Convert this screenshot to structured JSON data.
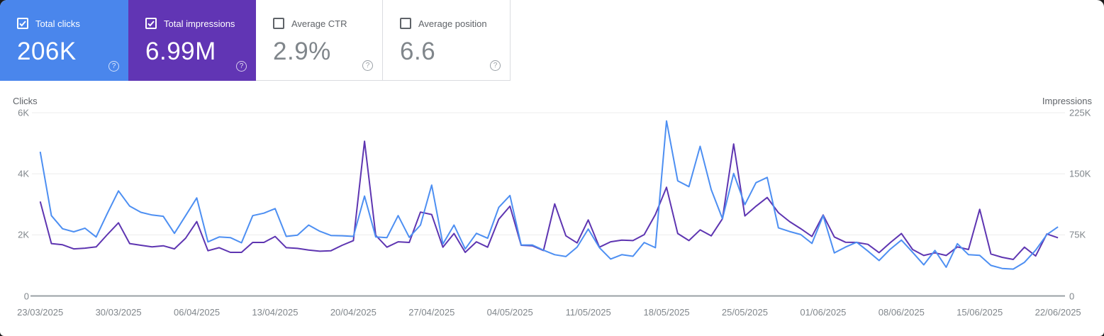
{
  "icons": {
    "help_glyph": "?",
    "checkbox_glyph": "check-mark"
  },
  "cards": [
    {
      "label": "Total clicks",
      "value": "206K",
      "checked": true,
      "color": "#4a86ec"
    },
    {
      "label": "Total impressions",
      "value": "6.99M",
      "checked": true,
      "color": "#6135b4"
    },
    {
      "label": "Average CTR",
      "value": "2.9%",
      "checked": false,
      "color": "#ffffff"
    },
    {
      "label": "Average position",
      "value": "6.6",
      "checked": false,
      "color": "#ffffff"
    }
  ],
  "chart_data": {
    "type": "line",
    "grid": true,
    "legend_position": "none",
    "left_axis": {
      "title": "Clicks",
      "ticks": [
        "6K",
        "4K",
        "2K",
        "0"
      ],
      "tick_values": [
        6000,
        4000,
        2000,
        0
      ],
      "max": 6000
    },
    "right_axis": {
      "title": "Impressions",
      "ticks": [
        "225K",
        "150K",
        "75K",
        "0"
      ],
      "tick_values": [
        225000,
        150000,
        75000,
        0
      ],
      "max": 225000
    },
    "x_labels": [
      "23/03/2025",
      "30/03/2025",
      "06/04/2025",
      "13/04/2025",
      "20/04/2025",
      "27/04/2025",
      "04/05/2025",
      "11/05/2025",
      "18/05/2025",
      "25/05/2025",
      "01/06/2025",
      "08/06/2025",
      "15/06/2025",
      "22/06/2025"
    ],
    "x_label_days": [
      0,
      7,
      14,
      21,
      28,
      35,
      42,
      49,
      56,
      63,
      70,
      77,
      84,
      91
    ],
    "series": [
      {
        "name": "Clicks",
        "axis": "left",
        "color": "#4d8ff2",
        "values": [
          4720,
          2630,
          2200,
          2100,
          2220,
          1930,
          2700,
          3440,
          2940,
          2740,
          2650,
          2610,
          2050,
          2630,
          3210,
          1770,
          1930,
          1910,
          1740,
          2630,
          2710,
          2860,
          1950,
          1990,
          2320,
          2120,
          1980,
          1970,
          1950,
          3270,
          1930,
          1910,
          2630,
          1920,
          2320,
          3630,
          1700,
          2320,
          1540,
          2050,
          1890,
          2900,
          3290,
          1670,
          1670,
          1500,
          1350,
          1290,
          1600,
          2190,
          1580,
          1210,
          1350,
          1300,
          1750,
          1580,
          5730,
          3770,
          3580,
          4900,
          3480,
          2530,
          4010,
          2990,
          3710,
          3880,
          2230,
          2110,
          2010,
          1720,
          2630,
          1410,
          1600,
          1760,
          1470,
          1160,
          1530,
          1830,
          1430,
          1020,
          1490,
          940,
          1710,
          1350,
          1330,
          1000,
          900,
          880,
          1100,
          1500,
          2010,
          2260
        ]
      },
      {
        "name": "Impressions",
        "axis": "right",
        "color": "#5e35b1",
        "values": [
          116000,
          64300,
          62800,
          57800,
          58700,
          60200,
          75300,
          89800,
          64300,
          62200,
          60200,
          61600,
          57800,
          70900,
          91300,
          55500,
          59300,
          53500,
          53500,
          65700,
          65700,
          73000,
          59300,
          58400,
          56400,
          54900,
          55500,
          62200,
          68000,
          190000,
          74400,
          59900,
          66500,
          65700,
          103000,
          100000,
          59900,
          76700,
          53500,
          66500,
          59900,
          94200,
          110200,
          62200,
          61600,
          55800,
          113100,
          73800,
          65100,
          93300,
          59900,
          66500,
          68600,
          68000,
          75300,
          100000,
          133400,
          76700,
          68000,
          81100,
          73800,
          94800,
          186600,
          98300,
          110200,
          120900,
          102300,
          91300,
          82600,
          73000,
          99400,
          72400,
          66000,
          65700,
          63400,
          53200,
          65400,
          76700,
          57000,
          49700,
          52900,
          49700,
          60200,
          57000,
          106400,
          51500,
          47400,
          44800,
          59900,
          49100,
          76100,
          71500
        ]
      }
    ]
  }
}
